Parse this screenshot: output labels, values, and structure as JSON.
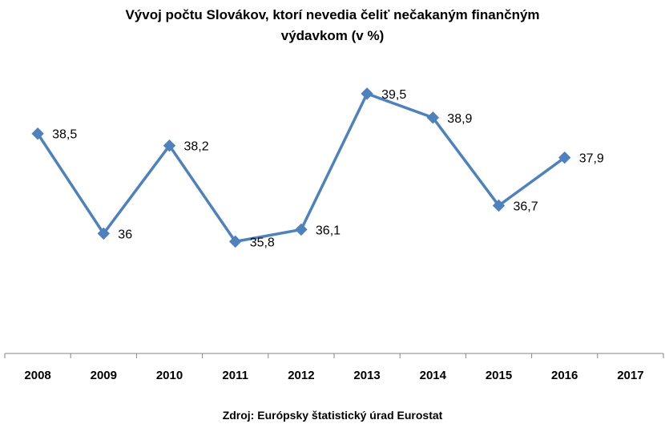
{
  "chart_data": {
    "type": "line",
    "title_line1": "Vývoj počtu Slovákov, ktorí nevedia čeliť  nečakaným finančným",
    "title_line2": "výdavkom (v %)",
    "categories": [
      "2008",
      "2009",
      "2010",
      "2011",
      "2012",
      "2013",
      "2014",
      "2015",
      "2016",
      "2017"
    ],
    "series": [
      {
        "values": [
          38.5,
          36,
          38.2,
          35.8,
          36.1,
          39.5,
          38.9,
          36.7,
          37.9,
          null
        ],
        "labels": [
          "38,5",
          "36",
          "38,2",
          "35,8",
          "36,1",
          "39,5",
          "38,9",
          "36,7",
          "37,9",
          ""
        ]
      }
    ],
    "ylim": [
      33,
      40.5
    ],
    "grid": false,
    "legend": "none",
    "colors": {
      "line": "#4F81BD",
      "axis": "#868686"
    },
    "source": "Zdroj: Európsky štatistický úrad Eurostat"
  }
}
